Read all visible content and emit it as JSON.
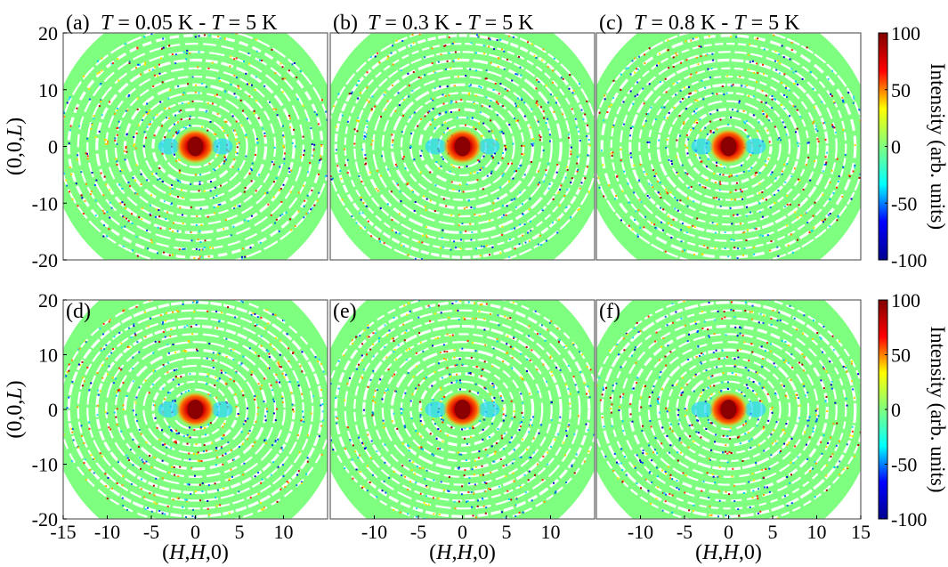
{
  "chart_data": [
    {
      "type": "heatmap",
      "panel_label": "(a)",
      "title_parts": [
        "T",
        " = 0.05 K - ",
        "T",
        " = 5 K"
      ],
      "xlim": [
        -15,
        15
      ],
      "ylim": [
        -20,
        20
      ],
      "seed": 11,
      "center_strength": 1.0
    },
    {
      "type": "heatmap",
      "panel_label": "(b)",
      "title_parts": [
        "T",
        " = 0.3 K - ",
        "T",
        " = 5 K"
      ],
      "xlim": [
        -15,
        15
      ],
      "ylim": [
        -20,
        20
      ],
      "seed": 23,
      "center_strength": 1.0
    },
    {
      "type": "heatmap",
      "panel_label": "(c)",
      "title_parts": [
        "T",
        " = 0.8 K - ",
        "T",
        " = 5 K"
      ],
      "xlim": [
        -15,
        15
      ],
      "ylim": [
        -20,
        20
      ],
      "seed": 37,
      "center_strength": 1.0
    },
    {
      "type": "heatmap",
      "panel_label": "(d)",
      "title_parts": [],
      "xlim": [
        -15,
        15
      ],
      "ylim": [
        -20,
        20
      ],
      "seed": 41,
      "center_strength": 1.0
    },
    {
      "type": "heatmap",
      "panel_label": "(e)",
      "title_parts": [],
      "xlim": [
        -15,
        15
      ],
      "ylim": [
        -20,
        20
      ],
      "seed": 53,
      "center_strength": 1.0
    },
    {
      "type": "heatmap",
      "panel_label": "(f)",
      "title_parts": [],
      "xlim": [
        -15,
        15
      ],
      "ylim": [
        -20,
        20
      ],
      "seed": 67,
      "center_strength": 1.0
    }
  ],
  "axes": {
    "ylabel_parts": [
      "(0,0,",
      "L",
      ")"
    ],
    "xlabel_parts": [
      "(",
      "H",
      ",",
      "H",
      ",0)"
    ],
    "y_ticks": [
      {
        "v": 20,
        "t": "20"
      },
      {
        "v": 10,
        "t": "10"
      },
      {
        "v": 0,
        "t": "0"
      },
      {
        "v": -10,
        "t": "-10"
      },
      {
        "v": -20,
        "t": "-20"
      }
    ],
    "x_ticks_left": [
      {
        "v": -15,
        "t": "-15"
      },
      {
        "v": -10,
        "t": "-10"
      },
      {
        "v": -5,
        "t": "-5"
      },
      {
        "v": 0,
        "t": "0"
      },
      {
        "v": 5,
        "t": "5"
      },
      {
        "v": 10,
        "t": "10"
      }
    ],
    "x_ticks_mid": [
      {
        "v": -10,
        "t": "-10"
      },
      {
        "v": -5,
        "t": "-5"
      },
      {
        "v": 0,
        "t": "0"
      },
      {
        "v": 5,
        "t": "5"
      },
      {
        "v": 10,
        "t": "10"
      }
    ],
    "x_ticks_right": [
      {
        "v": -10,
        "t": "-10"
      },
      {
        "v": -5,
        "t": "-5"
      },
      {
        "v": 0,
        "t": "0"
      },
      {
        "v": 5,
        "t": "5"
      },
      {
        "v": 10,
        "t": "10"
      },
      {
        "v": 15,
        "t": "15"
      }
    ]
  },
  "colorbar": {
    "label": "Intensity (arb. units)",
    "range": [
      -100,
      100
    ],
    "ticks": [
      {
        "v": 100,
        "t": "100"
      },
      {
        "v": 50,
        "t": "50"
      },
      {
        "v": 0,
        "t": "0"
      },
      {
        "v": -50,
        "t": "-50"
      },
      {
        "v": -100,
        "t": "-100"
      }
    ],
    "colors": [
      "#00008f",
      "#0000ff",
      "#00ffff",
      "#7fff7f",
      "#ffff00",
      "#ff0000",
      "#800000"
    ]
  }
}
